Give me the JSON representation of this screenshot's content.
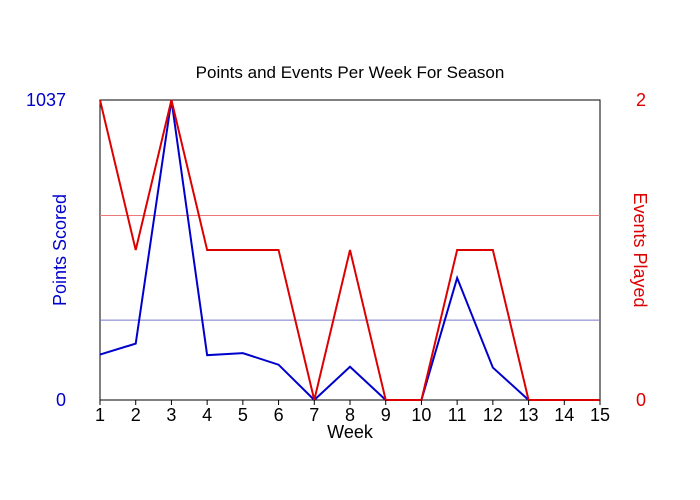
{
  "chart_data": {
    "type": "line",
    "title": "Points and Events Per Week For Season",
    "xlabel": "Week",
    "ylabel_left": "Points Scored",
    "ylabel_right": "Events Played",
    "x": [
      1,
      2,
      3,
      4,
      5,
      6,
      7,
      8,
      9,
      10,
      11,
      12,
      13,
      14,
      15
    ],
    "xlim": [
      1,
      15
    ],
    "ylim_left": [
      0,
      1037
    ],
    "ylim_right": [
      0,
      2
    ],
    "y_ticks_left": [
      "0",
      "1037"
    ],
    "y_ticks_right": [
      "0",
      "2"
    ],
    "series": [
      {
        "name": "Points Scored",
        "axis": "left",
        "color": "#0000cc",
        "values": [
          157,
          195,
          1037,
          155,
          162,
          122,
          0,
          115,
          0,
          0,
          422,
          112,
          0,
          0,
          0
        ]
      },
      {
        "name": "Events Played",
        "axis": "right",
        "color": "#dd0000",
        "values": [
          2,
          1,
          2,
          1,
          1,
          1,
          0,
          1,
          0,
          0,
          1,
          1,
          0,
          0,
          0
        ]
      }
    ],
    "reference_lines": [
      {
        "axis": "left",
        "value": 276,
        "color": "#7777cc"
      },
      {
        "axis": "right",
        "value": 1.23,
        "color": "#ee7777"
      }
    ],
    "grid": false
  }
}
